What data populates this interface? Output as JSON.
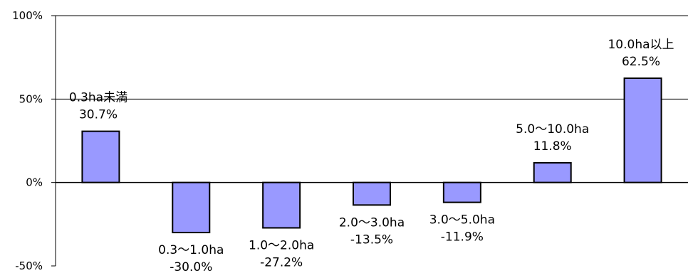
{
  "chart_data": {
    "type": "bar",
    "categories": [
      "0.3ha未満",
      "0.3〜1.0ha",
      "1.0〜2.0ha",
      "2.0〜3.0ha",
      "3.0〜5.0ha",
      "5.0〜10.0ha",
      "10.0ha以上"
    ],
    "values": [
      30.7,
      -30.0,
      -27.2,
      -13.5,
      -11.9,
      11.8,
      62.5
    ],
    "value_labels": [
      "30.7%",
      "-30.0%",
      "-27.2%",
      "-13.5%",
      "-11.9%",
      "11.8%",
      "62.5%"
    ],
    "yticks": [
      {
        "value": 100,
        "label": "100%"
      },
      {
        "value": 50,
        "label": "50%"
      },
      {
        "value": 0,
        "label": "0%"
      },
      {
        "value": -50,
        "label": "-50%"
      }
    ],
    "ylim": [
      -50,
      100
    ],
    "title": "",
    "xlabel": "",
    "ylabel": "",
    "grid": true,
    "legend": "none",
    "colors": {
      "bar": "#9999ff",
      "bar_stroke": "#000000",
      "axis": "#000000"
    }
  }
}
